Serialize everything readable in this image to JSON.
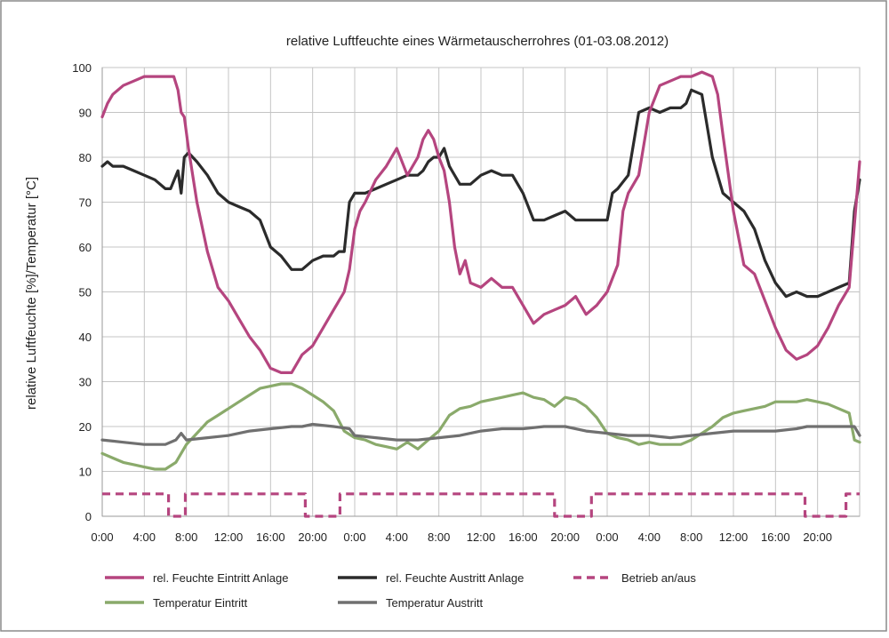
{
  "chart_data": {
    "type": "line",
    "title": "relative Luftfeuchte eines Wärmetauscherrohres (01-03.08.2012)",
    "ylabel": "relative Luftfeuchte [%]/Temperatur [°C]",
    "xlabel": "",
    "ylim": [
      0,
      100
    ],
    "yticks": [
      0,
      10,
      20,
      30,
      40,
      50,
      60,
      70,
      80,
      90,
      100
    ],
    "xlim": [
      0,
      72
    ],
    "xtick_hours": [
      0,
      4,
      8,
      12,
      16,
      20,
      24,
      28,
      32,
      36,
      40,
      44,
      48,
      52,
      56,
      60,
      64,
      68
    ],
    "xtick_labels": [
      "0:00",
      "4:00",
      "8:00",
      "12:00",
      "16:00",
      "20:00",
      "0:00",
      "4:00",
      "8:00",
      "12:00",
      "16:00",
      "20:00",
      "0:00",
      "4:00",
      "8:00",
      "12:00",
      "16:00",
      "20:00"
    ],
    "grid": true,
    "legend_position": "bottom",
    "series": [
      {
        "name": "rel. Feuchte Eintritt Anlage",
        "color": "#b5457f",
        "dash": "solid",
        "x": [
          0,
          0.5,
          1,
          2,
          3,
          4,
          5,
          6,
          6.8,
          7.2,
          7.5,
          7.8,
          8.2,
          9,
          10,
          11,
          12,
          13,
          14,
          15,
          16,
          17,
          18,
          19,
          20,
          21,
          22,
          23,
          23.5,
          24,
          24.5,
          25,
          26,
          27,
          28,
          29,
          30,
          30.5,
          31,
          31.5,
          32,
          32.5,
          33,
          33.5,
          34,
          34.5,
          35,
          36,
          37,
          38,
          39,
          40,
          41,
          42,
          43,
          44,
          45,
          46,
          47,
          48,
          49,
          49.5,
          50,
          51,
          52,
          53,
          54,
          55,
          55.5,
          56,
          57,
          58,
          58.5,
          59,
          60,
          61,
          62,
          63,
          64,
          65,
          66,
          67,
          68,
          69,
          70,
          71,
          71.5,
          72
        ],
        "values": [
          89,
          92,
          94,
          96,
          97,
          98,
          98,
          98,
          98,
          95,
          90,
          89,
          82,
          70,
          59,
          51,
          48,
          44,
          40,
          37,
          33,
          32,
          32,
          36,
          38,
          42,
          46,
          50,
          55,
          64,
          68,
          70,
          75,
          78,
          82,
          76,
          80,
          84,
          86,
          84,
          80,
          77,
          70,
          60,
          54,
          57,
          52,
          51,
          53,
          51,
          51,
          47,
          43,
          45,
          46,
          47,
          49,
          45,
          47,
          50,
          56,
          68,
          72,
          76,
          90,
          96,
          97,
          98,
          98,
          98,
          99,
          98,
          94,
          85,
          68,
          56,
          54,
          48,
          42,
          37,
          35,
          36,
          38,
          42,
          47,
          51,
          65,
          79
        ]
      },
      {
        "name": "rel. Feuchte Austritt Anlage",
        "color": "#2b2b2b",
        "dash": "solid",
        "x": [
          0,
          0.5,
          1,
          2,
          3,
          4,
          5,
          6,
          6.5,
          7.2,
          7.5,
          7.8,
          8.2,
          9,
          10,
          11,
          12,
          13,
          14,
          15,
          16,
          17,
          18,
          19,
          20,
          21,
          22,
          22.5,
          23,
          23.5,
          24,
          24.5,
          25,
          26,
          27,
          28,
          29,
          30,
          30.5,
          31,
          31.5,
          32,
          32.5,
          33,
          34,
          35,
          36,
          37,
          38,
          39,
          40,
          41,
          42,
          43,
          44,
          45,
          46,
          47,
          48,
          48.5,
          49,
          50,
          51,
          52,
          53,
          54,
          55,
          55.5,
          56,
          57,
          58,
          59,
          60,
          61,
          62,
          63,
          64,
          65,
          66,
          67,
          68,
          69,
          70,
          71,
          71.5,
          72
        ],
        "values": [
          78,
          79,
          78,
          78,
          77,
          76,
          75,
          73,
          73,
          77,
          72,
          80,
          81,
          79,
          76,
          72,
          70,
          69,
          68,
          66,
          60,
          58,
          55,
          55,
          57,
          58,
          58,
          59,
          59,
          70,
          72,
          72,
          72,
          73,
          74,
          75,
          76,
          76,
          77,
          79,
          80,
          80,
          82,
          78,
          74,
          74,
          76,
          77,
          76,
          76,
          72,
          66,
          66,
          67,
          68,
          66,
          66,
          66,
          66,
          72,
          73,
          76,
          90,
          91,
          90,
          91,
          91,
          92,
          95,
          94,
          80,
          72,
          70,
          68,
          64,
          57,
          52,
          49,
          50,
          49,
          49,
          50,
          51,
          52,
          68,
          75
        ]
      },
      {
        "name": "Betrieb an/aus",
        "color": "#b5457f",
        "dash": "dashed",
        "x": [
          0,
          6.3,
          6.3,
          7.9,
          7.9,
          19.3,
          19.3,
          22.6,
          22.6,
          43,
          43,
          46.5,
          46.5,
          66.8,
          66.8,
          70.7,
          70.7,
          72
        ],
        "values": [
          5,
          5,
          0,
          0,
          5,
          5,
          0,
          0,
          5,
          5,
          0,
          0,
          5,
          5,
          0,
          0,
          5,
          5
        ]
      },
      {
        "name": "Temperatur Eintritt",
        "color": "#8aaa6b",
        "dash": "solid",
        "x": [
          0,
          1,
          2,
          3,
          4,
          5,
          6,
          7,
          8,
          9,
          10,
          11,
          12,
          13,
          14,
          15,
          16,
          17,
          18,
          19,
          20,
          21,
          22,
          23,
          24,
          25,
          26,
          27,
          28,
          29,
          30,
          31,
          32,
          33,
          34,
          35,
          36,
          37,
          38,
          39,
          40,
          41,
          42,
          43,
          44,
          45,
          46,
          47,
          48,
          49,
          50,
          51,
          52,
          53,
          54,
          55,
          56,
          57,
          58,
          59,
          60,
          61,
          62,
          63,
          64,
          65,
          66,
          67,
          68,
          69,
          70,
          71,
          71.5,
          72
        ],
        "values": [
          14,
          13,
          12,
          11.5,
          11,
          10.5,
          10.5,
          12,
          16,
          18.5,
          21,
          22.5,
          24,
          25.5,
          27,
          28.5,
          29,
          29.5,
          29.5,
          28.5,
          27,
          25.5,
          23.5,
          19,
          17.5,
          17,
          16,
          15.5,
          15,
          16.5,
          15,
          17,
          19,
          22.5,
          24,
          24.5,
          25.5,
          26,
          26.5,
          27,
          27.5,
          26.5,
          26,
          24.5,
          26.5,
          26,
          24.5,
          22,
          18.5,
          17.5,
          17,
          16,
          16.5,
          16,
          16,
          16,
          17,
          18.5,
          20,
          22,
          23,
          23.5,
          24,
          24.5,
          25.5,
          25.5,
          25.5,
          26,
          25.5,
          25,
          24,
          23,
          17,
          16.5
        ]
      },
      {
        "name": "Temperatur Austritt",
        "color": "#707070",
        "dash": "solid",
        "x": [
          0,
          2,
          4,
          6,
          7,
          7.5,
          8,
          10,
          12,
          14,
          16,
          18,
          19,
          20,
          22,
          23.5,
          24,
          26,
          28,
          30,
          32,
          34,
          36,
          38,
          40,
          42,
          43,
          44,
          46,
          48,
          50,
          52,
          54,
          56,
          58,
          60,
          62,
          64,
          66,
          67,
          68,
          70,
          71.5,
          72
        ],
        "values": [
          17,
          16.5,
          16,
          16,
          17,
          18.5,
          17,
          17.5,
          18,
          19,
          19.5,
          20,
          20,
          20.5,
          20,
          19.5,
          18,
          17.5,
          17,
          17,
          17.5,
          18,
          19,
          19.5,
          19.5,
          20,
          20,
          20,
          19,
          18.5,
          18,
          18,
          17.5,
          18,
          18.5,
          19,
          19,
          19,
          19.5,
          20,
          20,
          20,
          20,
          18
        ]
      }
    ]
  }
}
